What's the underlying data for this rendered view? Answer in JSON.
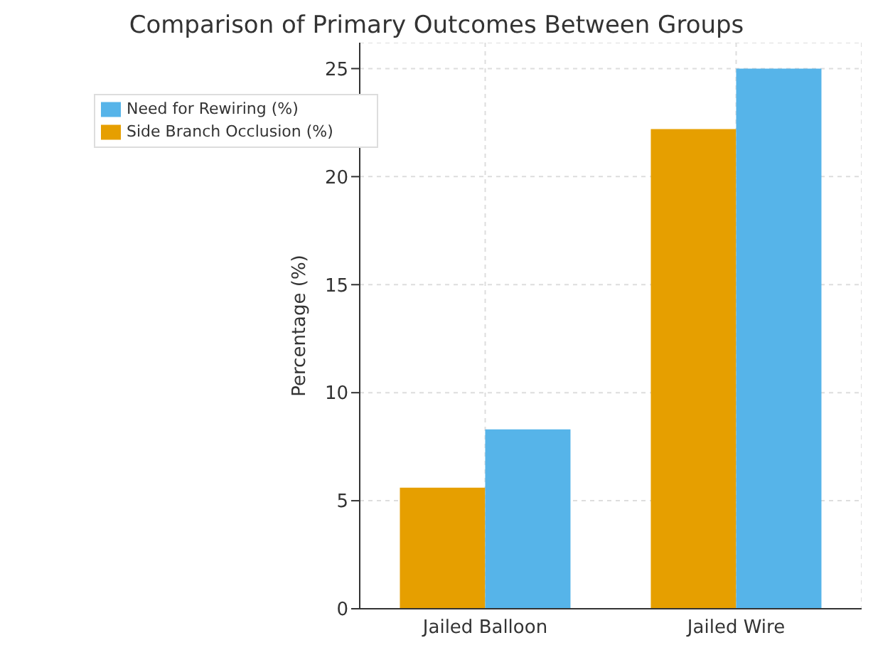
{
  "chart_data": {
    "type": "bar",
    "title": "Comparison of Primary Outcomes Between Groups",
    "ylabel": "Percentage (%)",
    "categories": [
      "Jailed Balloon",
      "Jailed Wire"
    ],
    "series": [
      {
        "name": "Side Branch Occlusion (%)",
        "color": "#e69f00",
        "values": [
          5.6,
          22.2
        ]
      },
      {
        "name": "Need for Rewiring (%)",
        "color": "#56b4e9",
        "values": [
          8.3,
          25.0
        ]
      }
    ],
    "ylim": [
      0,
      26.2
    ],
    "yticks": [
      0,
      5,
      10,
      15,
      20,
      25
    ],
    "grid": true,
    "legend": "top left"
  }
}
